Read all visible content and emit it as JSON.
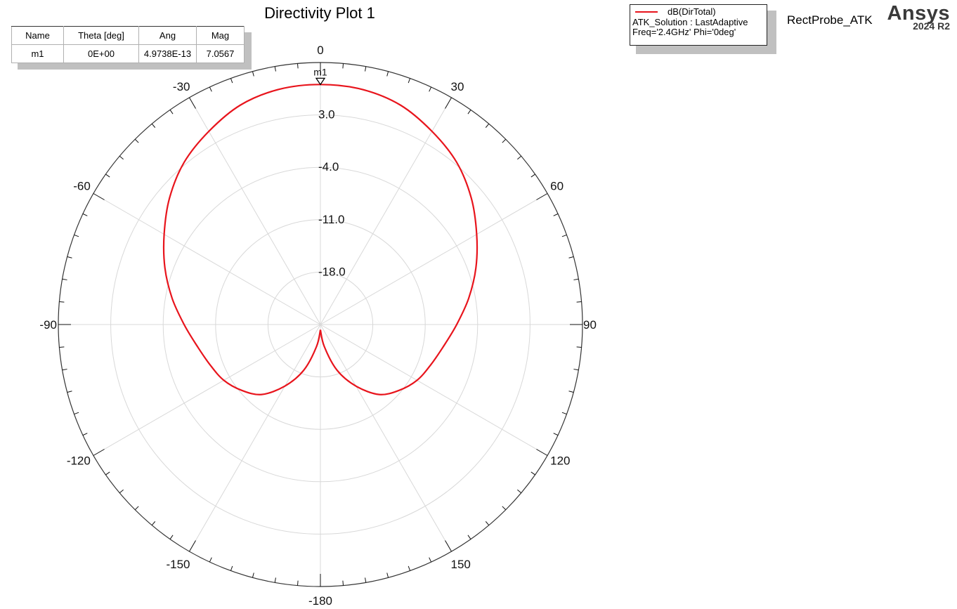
{
  "title": "Directivity Plot 1",
  "design_name": "RectProbe_ATK",
  "brand": {
    "name": "Ansys",
    "version": "2024 R2"
  },
  "marker_table": {
    "headers": [
      "Name",
      "Theta [deg]",
      "Ang",
      "Mag"
    ],
    "rows": [
      {
        "name": "m1",
        "theta": "0E+00",
        "ang": "4.9738E-13",
        "mag": "7.0567"
      }
    ]
  },
  "legend": {
    "trace_label": "dB(DirTotal)",
    "solution": "ATK_Solution : LastAdaptive",
    "variables": "Freq='2.4GHz' Phi='0deg'",
    "trace_color": "#e8141c"
  },
  "marker": {
    "label": "m1",
    "theta": 0,
    "value": 7.0567
  },
  "colors": {
    "trace": "#e8141c",
    "grid": "#d8d8d8",
    "axis": "#333333"
  },
  "chart_data": {
    "type": "polar-line",
    "title": "Directivity Plot 1",
    "series": [
      {
        "name": "dB(DirTotal)",
        "subtitle": "ATK_Solution : LastAdaptive, Freq='2.4GHz' Phi='0deg'",
        "color": "#e8141c",
        "theta_deg": [
          -180,
          -170,
          -160,
          -150,
          -140,
          -130,
          -120,
          -110,
          -100,
          -90,
          -80,
          -70,
          -60,
          -50,
          -40,
          -30,
          -20,
          -10,
          0,
          10,
          20,
          30,
          40,
          50,
          60,
          70,
          80,
          90,
          100,
          110,
          120,
          130,
          140,
          150,
          160,
          170,
          180
        ],
        "values_db": [
          -24.3,
          -22.0,
          -18.5,
          -15.5,
          -12.8,
          -11.3,
          -10.1,
          -9.3,
          -8.3,
          -6.8,
          -4.9,
          -2.9,
          -0.9,
          1.3,
          3.3,
          4.8,
          6.2,
          6.9,
          7.06,
          6.9,
          6.2,
          4.8,
          3.3,
          1.3,
          -0.9,
          -2.9,
          -4.9,
          -6.8,
          -8.3,
          -9.3,
          -10.1,
          -11.3,
          -12.8,
          -15.5,
          -18.5,
          -22.0,
          -24.3
        ]
      }
    ],
    "angular_axis": {
      "labels": [
        "0",
        "30",
        "60",
        "90",
        "120",
        "150",
        "-180",
        "-150",
        "-120",
        "-90",
        "-60",
        "-30"
      ],
      "label_angles": [
        0,
        30,
        60,
        90,
        120,
        150,
        180,
        -150,
        -120,
        -90,
        -60,
        -30
      ],
      "major_step_deg": 30,
      "minor_step_deg": 5,
      "zero_direction": "top",
      "direction": "clockwise"
    },
    "radial_axis": {
      "range": [
        -25,
        10
      ],
      "tick_values": [
        3.0,
        -4.0,
        -11.0,
        -18.0
      ],
      "tick_labels": [
        "3.0",
        "-4.0",
        "-11.0",
        "-18.0"
      ]
    },
    "markers": [
      {
        "name": "m1",
        "theta": 0,
        "ang": 4.9738e-13,
        "mag": 7.0567
      }
    ],
    "legend_position": "top-right",
    "grid": true
  }
}
